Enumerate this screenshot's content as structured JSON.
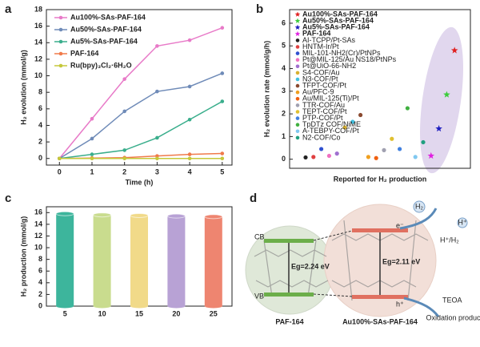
{
  "chart_data": [
    {
      "type": "line",
      "panel": "a",
      "xlabel": "Time (h)",
      "ylabel": "H₂ evolution (mmol/g)",
      "x": [
        0,
        1,
        2,
        3,
        4,
        5
      ],
      "xlim": [
        -0.4,
        5.3
      ],
      "xticks": [
        0,
        1,
        2,
        3,
        4,
        5
      ],
      "ylim": [
        -0.8,
        18
      ],
      "yticks": [
        0,
        2,
        4,
        6,
        8,
        10,
        12,
        14,
        16,
        18
      ],
      "series": [
        {
          "name": "Au100%-SAs-PAF-164",
          "color": "#e87ac8",
          "values": [
            0,
            4.8,
            9.6,
            13.6,
            14.3,
            15.8
          ]
        },
        {
          "name": "Au50%-SAs-PAF-164",
          "color": "#6f8bb8",
          "values": [
            0,
            2.4,
            5.7,
            8.1,
            8.7,
            10.3
          ]
        },
        {
          "name": "Au5%-SAs-PAF-164",
          "color": "#3aae8c",
          "values": [
            0,
            0.5,
            1.0,
            2.5,
            4.7,
            6.9
          ]
        },
        {
          "name": "PAF-164",
          "color": "#f07a4a",
          "values": [
            0,
            0.05,
            0.1,
            0.3,
            0.5,
            0.6
          ]
        },
        {
          "name": "Ru(bpy)₃Cl₂·6H₂O",
          "color": "#c5c83a",
          "values": [
            0,
            0,
            0,
            0,
            0,
            0
          ]
        }
      ]
    },
    {
      "type": "scatter",
      "panel": "b",
      "xlabel": "Reported for H₂ production",
      "ylabel": "H₂ evolution rate (mmol/g/h)",
      "ylim": [
        -0.4,
        6.6
      ],
      "yticks": [
        0,
        1,
        2,
        3,
        4,
        5,
        6
      ],
      "categories": [
        "Au100%-SAs-PAF-164",
        "Au50%-SAs-PAF-164",
        "Au5%-SAs-PAF-164",
        "PAF-164",
        "AI-TCPP/Pt-SAs",
        "HNTM-Ir/Pt",
        "MIL-101-NH2(Cr)/PtNPs",
        "Pt@MIL-125/Au NS18/PtNPs",
        "Pt@UiO-66-NH2",
        "S4-COF/Au",
        "N3-COF/Pt",
        "TFPT-COF/Pt",
        "Au/PFC-9",
        "Au/MIL-125(Ti)/Pt",
        "TTR-COF/Au",
        "TEPT-COF/Pt",
        "PTP-COF/Pt",
        "TpDTz COF/NiME",
        "A-TEBPY-COF/Pt",
        "N2-COF/Co"
      ],
      "values": [
        4.8,
        2.85,
        1.35,
        0.15,
        0.08,
        0.1,
        0.45,
        0.15,
        0.25,
        1.4,
        1.65,
        1.95,
        0.1,
        0.05,
        0.4,
        0.9,
        0.45,
        2.25,
        0.1,
        0.75
      ],
      "colors": [
        "#e02020",
        "#3ccc3c",
        "#2020c0",
        "#e020e0",
        "#222222",
        "#e04040",
        "#3050d0",
        "#f070c0",
        "#a070d0",
        "#d8b030",
        "#40c0e0",
        "#8a4a30",
        "#f0a020",
        "#f06010",
        "#a0a0b0",
        "#e0c030",
        "#4080e0",
        "#40b040",
        "#80c8f0",
        "#20a080"
      ],
      "markers": [
        "star",
        "star",
        "star",
        "star",
        "circle",
        "circle",
        "circle",
        "circle",
        "circle",
        "circle",
        "circle",
        "circle",
        "circle",
        "circle",
        "circle",
        "circle",
        "circle",
        "circle",
        "circle",
        "circle"
      ]
    },
    {
      "type": "bar",
      "panel": "c",
      "ylabel": "H₂ production (mmol/g)",
      "categories": [
        "5",
        "10",
        "15",
        "20",
        "25"
      ],
      "values": [
        15.8,
        15.6,
        15.5,
        15.4,
        15.3
      ],
      "colors": [
        "#3db59c",
        "#c9dc8e",
        "#f1da89",
        "#b8a2d5",
        "#ee8570"
      ],
      "ylim": [
        0,
        17
      ],
      "yticks": [
        0,
        2,
        4,
        6,
        8,
        10,
        12,
        14,
        16
      ]
    }
  ],
  "diagram": {
    "panel": "d",
    "cb": "CB",
    "vb": "VB",
    "gap_left": "Eg=2.24 eV",
    "gap_right": "Eg=2.11 eV",
    "left_label": "PAF-164",
    "right_label": "Au100%-SAs-PAF-164",
    "redox": "H⁺/H₂",
    "donor": "TEOA",
    "oxidation": "Oxidation products",
    "h2": "H₂",
    "proton": "H⁺",
    "electron": "e⁻",
    "hole": "h⁺"
  }
}
